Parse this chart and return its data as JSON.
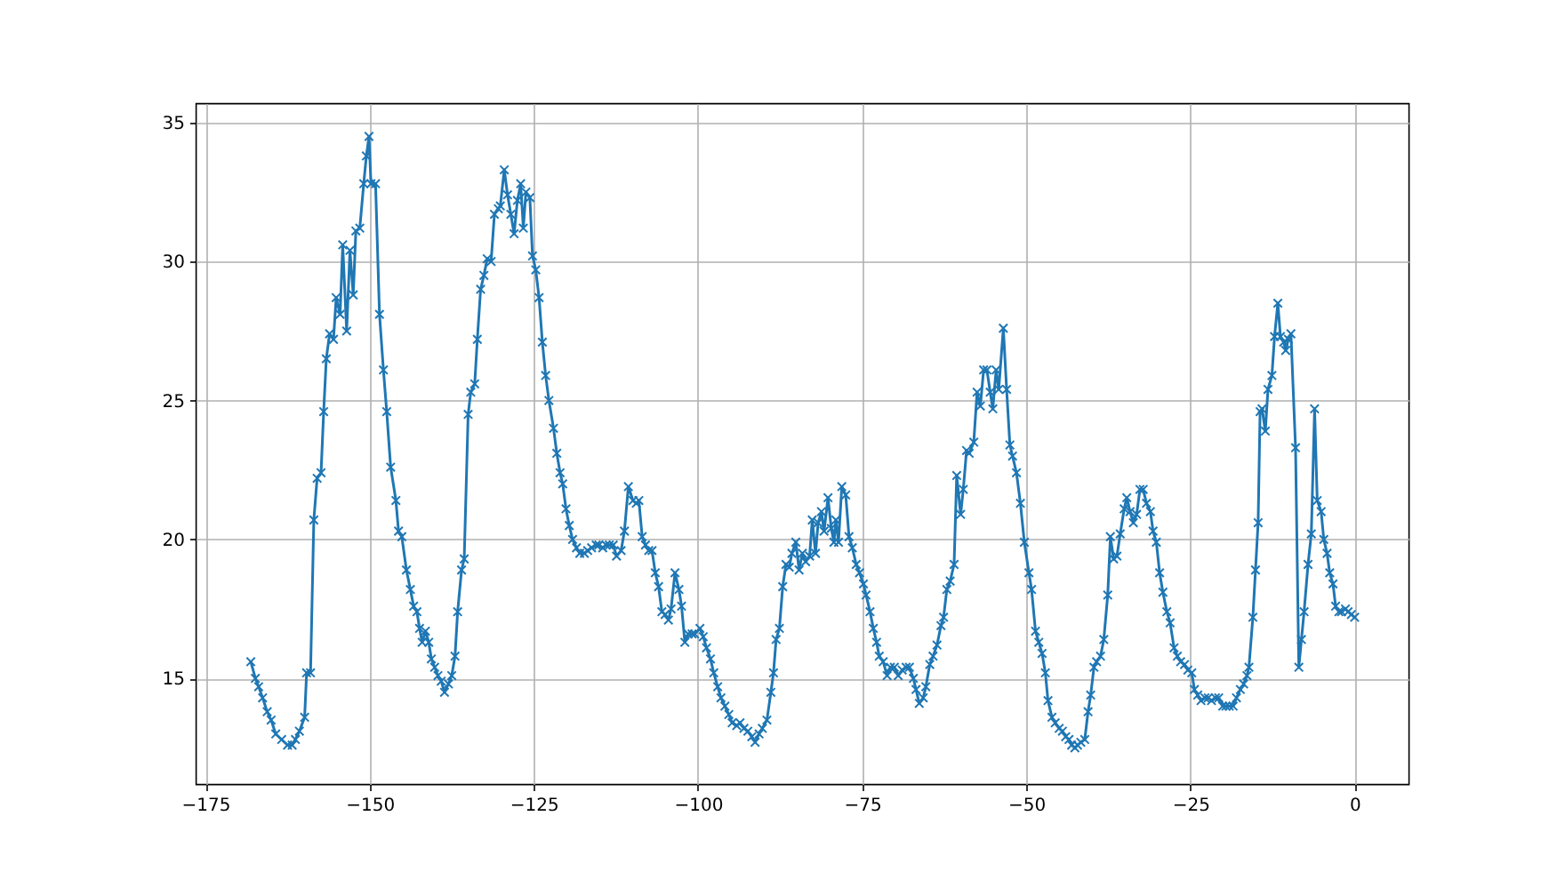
{
  "chart_data": {
    "type": "line",
    "x": [
      -168.1,
      -167.4,
      -166.9,
      -166.3,
      -165.6,
      -165.0,
      -164.3,
      -163.4,
      -162.5,
      -161.8,
      -161.3,
      -160.7,
      -159.9,
      -159.6,
      -159.0,
      -158.5,
      -158.0,
      -157.4,
      -157.0,
      -156.6,
      -156.1,
      -155.5,
      -155.1,
      -154.5,
      -154.1,
      -153.5,
      -153.0,
      -152.5,
      -152.1,
      -151.5,
      -150.9,
      -150.5,
      -150.1,
      -149.8,
      -149.1,
      -148.5,
      -147.9,
      -147.4,
      -146.8,
      -146.0,
      -145.6,
      -145.1,
      -144.4,
      -143.8,
      -143.3,
      -142.8,
      -142.4,
      -142.0,
      -141.5,
      -141.0,
      -140.6,
      -140.1,
      -139.6,
      -139.1,
      -138.6,
      -138.0,
      -137.5,
      -137.0,
      -136.6,
      -136.0,
      -135.6,
      -135.0,
      -134.6,
      -134.0,
      -133.6,
      -133.1,
      -132.6,
      -132.1,
      -131.5,
      -131.0,
      -130.4,
      -130.1,
      -129.5,
      -129.0,
      -128.5,
      -128.0,
      -127.5,
      -127.0,
      -126.6,
      -126.2,
      -125.6,
      -125.2,
      -124.7,
      -124.2,
      -123.7,
      -123.2,
      -122.7,
      -122.0,
      -121.5,
      -121.0,
      -120.6,
      -120.1,
      -119.6,
      -119.1,
      -118.5,
      -118.0,
      -117.3,
      -116.8,
      -116.2,
      -115.5,
      -115.1,
      -114.5,
      -114.0,
      -113.5,
      -112.9,
      -112.4,
      -111.7,
      -111.2,
      -110.6,
      -109.9,
      -109.4,
      -109.0,
      -108.5,
      -108.0,
      -107.5,
      -107.0,
      -106.5,
      -106.0,
      -105.5,
      -105.0,
      -104.5,
      -104.1,
      -103.5,
      -102.9,
      -102.5,
      -102.0,
      -101.5,
      -100.9,
      -100.5,
      -99.7,
      -99.2,
      -98.7,
      -98.1,
      -97.6,
      -97.0,
      -96.5,
      -95.9,
      -95.3,
      -94.8,
      -94.1,
      -93.6,
      -93.0,
      -92.4,
      -91.8,
      -91.3,
      -90.7,
      -90.2,
      -89.5,
      -88.9,
      -88.5,
      -88.1,
      -87.6,
      -87.1,
      -86.6,
      -86.1,
      -85.7,
      -85.1,
      -84.6,
      -84.1,
      -83.6,
      -83.0,
      -82.6,
      -82.1,
      -81.7,
      -81.2,
      -80.8,
      -80.2,
      -79.7,
      -79.3,
      -79.0,
      -78.6,
      -78.1,
      -77.5,
      -77.0,
      -76.5,
      -75.9,
      -75.4,
      -74.8,
      -74.4,
      -73.8,
      -73.3,
      -72.8,
      -72.4,
      -71.8,
      -71.2,
      -70.7,
      -70.1,
      -69.5,
      -68.9,
      -68.3,
      -67.8,
      -67.2,
      -66.8,
      -66.3,
      -65.7,
      -65.3,
      -64.7,
      -64.2,
      -63.6,
      -63.0,
      -62.6,
      -62.1,
      -61.6,
      -61.0,
      -60.6,
      -60.0,
      -59.6,
      -59.1,
      -58.7,
      -58.0,
      -57.5,
      -57.0,
      -56.5,
      -56.0,
      -55.5,
      -55.1,
      -54.6,
      -54.2,
      -53.5,
      -53.0,
      -52.5,
      -52.1,
      -51.5,
      -50.9,
      -50.3,
      -49.6,
      -49.2,
      -48.6,
      -48.1,
      -47.6,
      -47.1,
      -46.7,
      -46.1,
      -45.6,
      -45.0,
      -44.5,
      -44.0,
      -43.5,
      -43.1,
      -42.6,
      -42.2,
      -41.7,
      -41.1,
      -40.6,
      -40.2,
      -39.7,
      -39.3,
      -38.7,
      -38.2,
      -37.6,
      -37.2,
      -36.7,
      -36.2,
      -35.7,
      -35.1,
      -34.7,
      -34.2,
      -33.7,
      -33.2,
      -32.7,
      -32.2,
      -31.7,
      -31.1,
      -30.7,
      -30.2,
      -29.7,
      -29.2,
      -28.6,
      -28.1,
      -27.5,
      -27.0,
      -26.5,
      -25.9,
      -25.4,
      -24.8,
      -24.4,
      -23.9,
      -23.4,
      -22.8,
      -22.3,
      -21.8,
      -21.2,
      -20.7,
      -20.1,
      -19.6,
      -19.1,
      -18.5,
      -18.0,
      -17.4,
      -16.9,
      -16.4,
      -16.1,
      -15.5,
      -15.1,
      -14.7,
      -14.4,
      -14.1,
      -13.6,
      -13.2,
      -12.6,
      -12.2,
      -11.7,
      -11.3,
      -10.8,
      -10.5,
      -10.1,
      -9.7,
      -9.0,
      -8.5,
      -8.1,
      -7.7,
      -7.1,
      -6.6,
      -6.1,
      -5.7,
      -5.1,
      -4.7,
      -4.2,
      -3.8,
      -3.3,
      -2.9,
      -2.4,
      -2.0,
      -1.4,
      -1.0,
      -0.5,
      0.0
    ],
    "series": [
      {
        "color": "#1f77b4",
        "values": [
          15.6,
          15.0,
          14.7,
          14.3,
          13.8,
          13.5,
          13.0,
          12.8,
          12.6,
          12.6,
          12.8,
          13.1,
          13.6,
          15.2,
          15.2,
          20.7,
          22.2,
          22.4,
          24.6,
          26.5,
          27.4,
          27.2,
          28.7,
          28.1,
          30.6,
          27.5,
          30.4,
          28.8,
          31.1,
          31.2,
          32.8,
          33.8,
          34.5,
          32.8,
          32.8,
          28.1,
          26.1,
          24.6,
          22.6,
          21.4,
          20.3,
          20.1,
          18.9,
          18.2,
          17.6,
          17.4,
          16.8,
          16.3,
          16.7,
          16.3,
          15.7,
          15.4,
          15.1,
          14.9,
          14.5,
          14.8,
          15.1,
          15.8,
          17.4,
          18.9,
          19.3,
          24.5,
          25.3,
          25.6,
          27.2,
          29.0,
          29.5,
          30.1,
          30.0,
          31.7,
          31.9,
          32.0,
          33.3,
          32.4,
          31.7,
          31.0,
          32.2,
          32.8,
          31.2,
          32.5,
          32.3,
          30.2,
          29.7,
          28.7,
          27.1,
          25.9,
          25.0,
          24.0,
          23.1,
          22.4,
          22.0,
          21.1,
          20.5,
          20.0,
          19.7,
          19.5,
          19.5,
          19.6,
          19.7,
          19.8,
          19.8,
          19.7,
          19.8,
          19.8,
          19.8,
          19.4,
          19.6,
          20.3,
          21.9,
          21.4,
          21.3,
          21.4,
          20.1,
          19.8,
          19.6,
          19.6,
          18.8,
          18.3,
          17.4,
          17.3,
          17.1,
          17.5,
          18.8,
          18.2,
          17.6,
          16.3,
          16.6,
          16.6,
          16.6,
          16.8,
          16.5,
          16.1,
          15.7,
          15.2,
          14.7,
          14.3,
          14.0,
          13.7,
          13.4,
          13.3,
          13.4,
          13.2,
          13.1,
          12.9,
          12.7,
          13.0,
          13.2,
          13.5,
          14.5,
          15.2,
          16.4,
          16.8,
          18.3,
          19.1,
          19.0,
          19.5,
          19.9,
          18.9,
          19.5,
          19.2,
          19.4,
          20.7,
          19.5,
          20.6,
          21.0,
          20.3,
          21.5,
          20.4,
          19.9,
          20.7,
          19.9,
          21.9,
          21.6,
          20.1,
          19.7,
          19.1,
          18.8,
          18.4,
          18.0,
          17.4,
          16.8,
          16.3,
          15.8,
          15.6,
          15.1,
          15.4,
          15.4,
          15.1,
          15.3,
          15.4,
          15.4,
          15.0,
          14.6,
          14.1,
          14.3,
          14.7,
          15.5,
          15.8,
          16.2,
          16.9,
          17.2,
          18.2,
          18.5,
          19.1,
          22.3,
          20.9,
          21.8,
          23.2,
          23.1,
          23.5,
          25.3,
          24.8,
          26.1,
          26.1,
          25.3,
          24.7,
          26.1,
          25.4,
          27.6,
          25.4,
          23.4,
          23.0,
          22.4,
          21.3,
          19.9,
          18.8,
          18.2,
          16.7,
          16.3,
          15.9,
          15.2,
          14.2,
          13.6,
          13.4,
          13.2,
          13.1,
          12.9,
          12.8,
          12.6,
          12.5,
          12.6,
          12.7,
          12.8,
          13.8,
          14.4,
          15.4,
          15.6,
          15.8,
          16.4,
          18.0,
          20.1,
          19.3,
          19.4,
          20.2,
          21.1,
          21.5,
          21.0,
          20.6,
          20.9,
          21.8,
          21.8,
          21.3,
          21.0,
          20.3,
          19.9,
          18.8,
          18.1,
          17.4,
          17.0,
          16.1,
          15.8,
          15.6,
          15.5,
          15.3,
          15.2,
          14.6,
          14.4,
          14.2,
          14.3,
          14.3,
          14.2,
          14.3,
          14.3,
          14.0,
          14.0,
          14.0,
          14.0,
          14.3,
          14.6,
          14.8,
          15.1,
          15.4,
          17.2,
          18.9,
          20.6,
          24.6,
          24.7,
          23.9,
          25.4,
          25.9,
          27.3,
          28.5,
          27.3,
          27.1,
          26.8,
          27.2,
          27.4,
          23.3,
          15.4,
          16.4,
          17.4,
          19.1,
          20.2,
          24.7,
          21.4,
          21.0,
          20.0,
          19.5,
          18.8,
          18.4,
          17.6,
          17.4,
          17.4,
          17.5,
          17.4,
          17.3,
          17.2
        ]
      }
    ],
    "xlim": [
      -176.5,
      8.2
    ],
    "ylim": [
      11.2,
      35.7
    ],
    "xticks": [
      -175,
      -150,
      -125,
      -100,
      -75,
      -50,
      -25,
      0
    ],
    "yticks": [
      15,
      20,
      25,
      30,
      35
    ],
    "grid": true,
    "marker": "cross"
  }
}
